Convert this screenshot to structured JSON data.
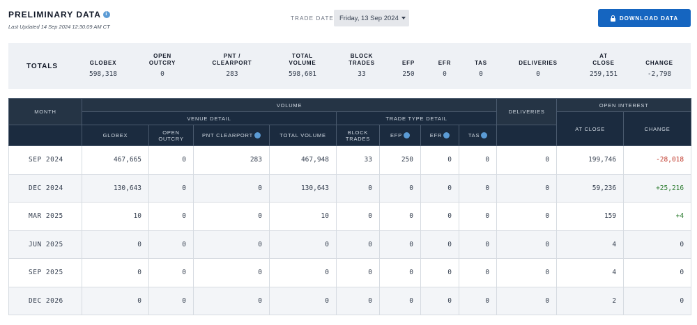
{
  "header": {
    "title": "PRELIMINARY DATA",
    "last_updated": "Last Updated 14 Sep 2024 12:30:09 AM CT",
    "trade_date_label": "TRADE DATE",
    "trade_date_value": "Friday, 13 Sep 2024",
    "download_label": "DOWNLOAD DATA"
  },
  "totals": {
    "label": "TOTALS",
    "columns": [
      {
        "label": "GLOBEX",
        "value": "598,318"
      },
      {
        "label": "OPEN\nOUTCRY",
        "value": "0"
      },
      {
        "label": "PNT /\nCLEARPORT",
        "value": "283"
      },
      {
        "label": "TOTAL\nVOLUME",
        "value": "598,601"
      },
      {
        "label": "BLOCK\nTRADES",
        "value": "33"
      },
      {
        "label": "EFP",
        "value": "250"
      },
      {
        "label": "EFR",
        "value": "0"
      },
      {
        "label": "TAS",
        "value": "0"
      },
      {
        "label": "DELIVERIES",
        "value": "0"
      },
      {
        "label": "AT\nCLOSE",
        "value": "259,151"
      },
      {
        "label": "CHANGE",
        "value": "-2,798"
      }
    ]
  },
  "table": {
    "group_headers": {
      "month": "MONTH",
      "volume": "VOLUME",
      "deliveries": "DELIVERIES",
      "open_interest": "OPEN INTEREST",
      "venue_detail": "VENUE DETAIL",
      "trade_type_detail": "TRADE TYPE DETAIL"
    },
    "columns": {
      "globex": "GLOBEX",
      "open_outcry": "OPEN OUTCRY",
      "pnt_clearport": "PNT CLEARPORT",
      "total_volume": "TOTAL VOLUME",
      "block_trades": "BLOCK TRADES",
      "efp": "EFP",
      "efr": "EFR",
      "tas": "TAS",
      "at_close": "AT CLOSE",
      "change": "CHANGE"
    },
    "rows": [
      {
        "month": "SEP 2024",
        "globex": "467,665",
        "open_outcry": "0",
        "pnt": "283",
        "total": "467,948",
        "block": "33",
        "efp": "250",
        "efr": "0",
        "tas": "0",
        "deliveries": "0",
        "at_close": "199,746",
        "change": "-28,018",
        "change_dir": "neg"
      },
      {
        "month": "DEC 2024",
        "globex": "130,643",
        "open_outcry": "0",
        "pnt": "0",
        "total": "130,643",
        "block": "0",
        "efp": "0",
        "efr": "0",
        "tas": "0",
        "deliveries": "0",
        "at_close": "59,236",
        "change": "+25,216",
        "change_dir": "pos"
      },
      {
        "month": "MAR 2025",
        "globex": "10",
        "open_outcry": "0",
        "pnt": "0",
        "total": "10",
        "block": "0",
        "efp": "0",
        "efr": "0",
        "tas": "0",
        "deliveries": "0",
        "at_close": "159",
        "change": "+4",
        "change_dir": "pos"
      },
      {
        "month": "JUN 2025",
        "globex": "0",
        "open_outcry": "0",
        "pnt": "0",
        "total": "0",
        "block": "0",
        "efp": "0",
        "efr": "0",
        "tas": "0",
        "deliveries": "0",
        "at_close": "4",
        "change": "0",
        "change_dir": ""
      },
      {
        "month": "SEP 2025",
        "globex": "0",
        "open_outcry": "0",
        "pnt": "0",
        "total": "0",
        "block": "0",
        "efp": "0",
        "efr": "0",
        "tas": "0",
        "deliveries": "0",
        "at_close": "4",
        "change": "0",
        "change_dir": ""
      },
      {
        "month": "DEC 2026",
        "globex": "0",
        "open_outcry": "0",
        "pnt": "0",
        "total": "0",
        "block": "0",
        "efp": "0",
        "efr": "0",
        "tas": "0",
        "deliveries": "0",
        "at_close": "2",
        "change": "0",
        "change_dir": ""
      }
    ]
  },
  "colors": {
    "header_bg": "#1b2b3f",
    "accent": "#1565c0",
    "negative": "#c0392b",
    "positive": "#2e7d32"
  },
  "icons": [
    "info-icon",
    "caret-down-icon",
    "lock-icon"
  ]
}
